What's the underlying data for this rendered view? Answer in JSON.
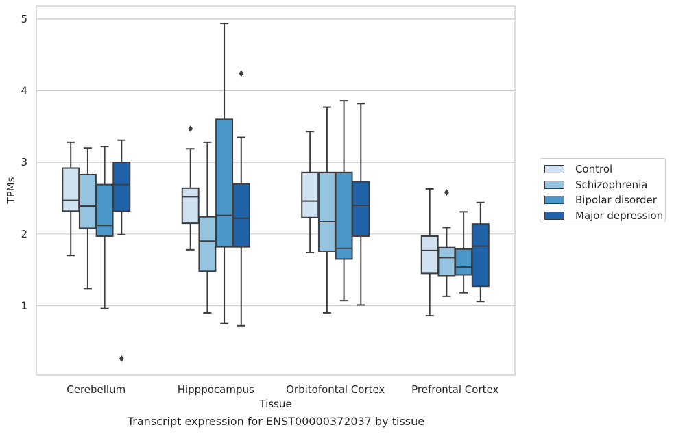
{
  "caption": "Transcript expression for ENST00000372037 by tissue",
  "chart_data": {
    "type": "box",
    "title": "",
    "xlabel": "Tissue",
    "ylabel": "TPMs",
    "ylim": [
      0.03,
      5.18
    ],
    "yticks": [
      1,
      2,
      3,
      4,
      5
    ],
    "grid": true,
    "legend_position": "right",
    "categories": [
      "Cerebellum",
      "Hipppocampus",
      "Orbitofontal Cortex",
      "Prefrontal Cortex"
    ],
    "series": [
      {
        "name": "Control",
        "color": "#d0e1f2",
        "boxes": [
          {
            "whisker_low": 1.7,
            "q1": 2.32,
            "median": 2.47,
            "q3": 2.92,
            "whisker_high": 3.28,
            "outliers": []
          },
          {
            "whisker_low": 1.78,
            "q1": 2.15,
            "median": 2.52,
            "q3": 2.64,
            "whisker_high": 3.19,
            "outliers": [
              3.47
            ]
          },
          {
            "whisker_low": 1.74,
            "q1": 2.23,
            "median": 2.46,
            "q3": 2.86,
            "whisker_high": 3.43,
            "outliers": []
          },
          {
            "whisker_low": 0.86,
            "q1": 1.45,
            "median": 1.77,
            "q3": 1.97,
            "whisker_high": 2.63,
            "outliers": []
          }
        ]
      },
      {
        "name": "Schizophrenia",
        "color": "#94c4df",
        "boxes": [
          {
            "whisker_low": 1.24,
            "q1": 2.08,
            "median": 2.39,
            "q3": 2.83,
            "whisker_high": 3.2,
            "outliers": []
          },
          {
            "whisker_low": 0.9,
            "q1": 1.48,
            "median": 1.9,
            "q3": 2.24,
            "whisker_high": 3.28,
            "outliers": []
          },
          {
            "whisker_low": 0.9,
            "q1": 1.76,
            "median": 2.17,
            "q3": 2.86,
            "whisker_high": 3.77,
            "outliers": []
          },
          {
            "whisker_low": 1.13,
            "q1": 1.42,
            "median": 1.67,
            "q3": 1.81,
            "whisker_high": 2.09,
            "outliers": [
              2.58
            ]
          }
        ]
      },
      {
        "name": "Bipolar disorder",
        "color": "#4a98c9",
        "boxes": [
          {
            "whisker_low": 0.96,
            "q1": 1.97,
            "median": 2.12,
            "q3": 2.69,
            "whisker_high": 3.22,
            "outliers": []
          },
          {
            "whisker_low": 0.75,
            "q1": 1.82,
            "median": 2.26,
            "q3": 3.6,
            "whisker_high": 4.94,
            "outliers": []
          },
          {
            "whisker_low": 1.07,
            "q1": 1.65,
            "median": 1.8,
            "q3": 2.86,
            "whisker_high": 3.86,
            "outliers": []
          },
          {
            "whisker_low": 1.18,
            "q1": 1.43,
            "median": 1.54,
            "q3": 1.79,
            "whisker_high": 2.31,
            "outliers": []
          }
        ]
      },
      {
        "name": "Major depression",
        "color": "#2163a8",
        "boxes": [
          {
            "whisker_low": 1.99,
            "q1": 2.32,
            "median": 2.69,
            "q3": 3.0,
            "whisker_high": 3.31,
            "outliers": [
              0.26
            ]
          },
          {
            "whisker_low": 0.72,
            "q1": 1.82,
            "median": 2.22,
            "q3": 2.7,
            "whisker_high": 3.35,
            "outliers": [
              4.24
            ]
          },
          {
            "whisker_low": 1.01,
            "q1": 1.97,
            "median": 2.4,
            "q3": 2.73,
            "whisker_high": 3.82,
            "outliers": []
          },
          {
            "whisker_low": 1.06,
            "q1": 1.27,
            "median": 1.83,
            "q3": 2.14,
            "whisker_high": 2.44,
            "outliers": []
          }
        ]
      }
    ]
  }
}
